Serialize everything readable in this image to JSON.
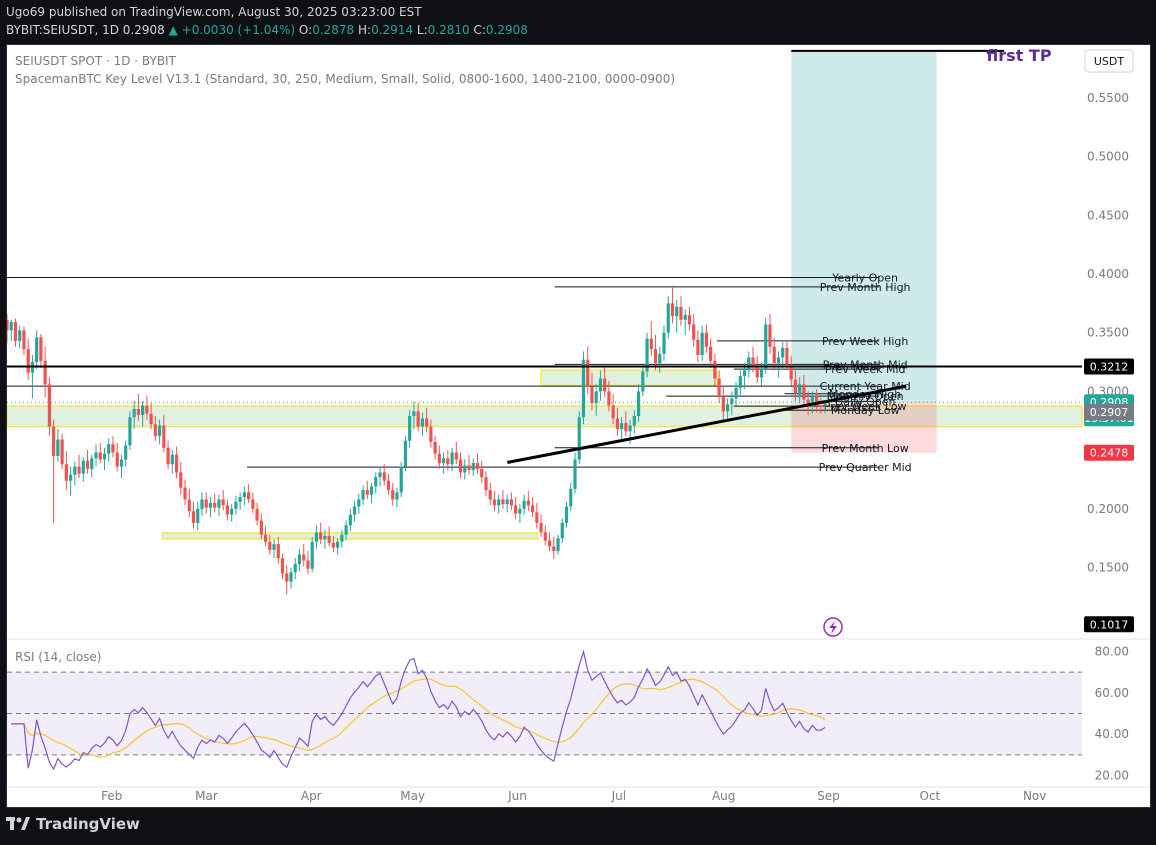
{
  "header": {
    "line1": "Ugo69 published on TradingView.com, August 30, 2025 03:23:00 EST",
    "symbol_line": "BYBIT:SEIUSDT, 1D",
    "price": "0.2908",
    "change": "+0.0030 (+1.04%)",
    "ohlc": [
      {
        "k": "O:",
        "v": "0.2878"
      },
      {
        "k": "H:",
        "v": "0.2914"
      },
      {
        "k": "L:",
        "v": "0.2810"
      },
      {
        "k": "C:",
        "v": "0.2908"
      }
    ]
  },
  "legend": {
    "title": "SEIUSDT SPOT · 1D · BYBIT",
    "indicator": "SpacemanBTC Key Level V13.1 (Standard, 30, 250, Medium, Small, Solid, 0800-1600, 1400-2100, 0000-0900)"
  },
  "footer": {
    "brand": "TradingView"
  },
  "chart_data": {
    "type": "candlestick",
    "currency": "USDT",
    "y_ticks": [
      "0.5500",
      "0.5000",
      "0.4500",
      "0.4000",
      "0.3500",
      "0.3000",
      "0.2500",
      "0.2000",
      "0.1500"
    ],
    "y_tick_values": [
      0.55,
      0.5,
      0.45,
      0.4,
      0.35,
      0.3,
      0.25,
      0.2,
      0.15
    ],
    "ylim": [
      0.09,
      0.595
    ],
    "x_ticks": [
      "Feb",
      "Mar",
      "Apr",
      "May",
      "Jun",
      "Jul",
      "Aug",
      "Sep",
      "Oct",
      "Nov"
    ],
    "x_tick_days": [
      31,
      59,
      90,
      120,
      151,
      181,
      212,
      243,
      273,
      304
    ],
    "xlim_days": [
      0,
      318
    ],
    "price_badges": [
      {
        "label": "0.3212",
        "value": 0.3212,
        "bg": "#000000",
        "fg": "#ffffff"
      },
      {
        "label": "0.2908",
        "value": 0.2908,
        "bg": "#26a69a",
        "fg": "#ffffff"
      },
      {
        "label": "15:37:01",
        "value": 0.2908,
        "bg": "#26a69a",
        "fg": "#ffffff",
        "sub": true
      },
      {
        "label": "0.2907",
        "value": 0.2825,
        "bg": "#787b86",
        "fg": "#ffffff"
      },
      {
        "label": "0.2478",
        "value": 0.2478,
        "bg": "#f23645",
        "fg": "#ffffff"
      },
      {
        "label": "0.1017",
        "value": 0.1017,
        "bg": "#000000",
        "fg": "#ffffff"
      }
    ],
    "key_levels": [
      {
        "label": "Yearly Open",
        "value": 0.397,
        "x1": 0,
        "x2": 258
      },
      {
        "label": "Prev Month High",
        "value": 0.389,
        "x1": 162,
        "x2": 258
      },
      {
        "label": "Prev Week High",
        "value": 0.343,
        "x1": 210,
        "x2": 258
      },
      {
        "label": "Prev Month Mid",
        "value": 0.323,
        "x1": 162,
        "x2": 258
      },
      {
        "label": "Prev Week Mid",
        "value": 0.319,
        "x1": 215,
        "x2": 258
      },
      {
        "label": "Current Year Mid",
        "value": 0.3045,
        "x1": 0,
        "x2": 258
      },
      {
        "label": "Monday High",
        "value": 0.298,
        "x1": 230,
        "x2": 258
      },
      {
        "label": "Monthly Open",
        "value": 0.296,
        "x1": 195,
        "x2": 258
      },
      {
        "label": "Daily Open",
        "value": 0.2915,
        "x1": 240,
        "x2": 258
      },
      {
        "label": "Prev Week Low",
        "value": 0.2875,
        "x1": 215,
        "x2": 258
      },
      {
        "label": "Monday Low",
        "value": 0.284,
        "x1": 230,
        "x2": 258
      },
      {
        "label": "Prev Month Low",
        "value": 0.252,
        "x1": 162,
        "x2": 258
      },
      {
        "label": "Prev Quarter Mid",
        "value": 0.2355,
        "x1": 71,
        "x2": 258
      }
    ],
    "position": {
      "label": "first TP",
      "entry": 0.2908,
      "target": 0.59,
      "stop": 0.2478,
      "start_day": 232,
      "end_day": 275
    },
    "trendline": {
      "x1": 148,
      "y1": 0.2395,
      "x2": 266,
      "y2": 0.3045
    },
    "black_level": {
      "value": 0.3212
    },
    "zones": [
      {
        "y1": 0.27,
        "y2": 0.2875,
        "x1": 0,
        "x2": 318
      },
      {
        "y1": 0.1745,
        "y2": 0.1795,
        "x1": 46,
        "x2": 157
      },
      {
        "y1": 0.305,
        "y2": 0.318,
        "x1": 158,
        "x2": 210
      }
    ],
    "rsi": {
      "title": "RSI (14, close)",
      "ticks": [
        "80.00",
        "60.00",
        "40.00",
        "20.00"
      ],
      "tick_values": [
        80,
        60,
        40,
        20
      ],
      "ylim": [
        15,
        85
      ],
      "upper": 70,
      "middle": 50,
      "lower": 30
    },
    "candles": [
      [
        0.361,
        0.366,
        0.341,
        0.352
      ],
      [
        0.352,
        0.361,
        0.343,
        0.359
      ],
      [
        0.359,
        0.362,
        0.338,
        0.343
      ],
      [
        0.343,
        0.356,
        0.337,
        0.352
      ],
      [
        0.352,
        0.355,
        0.331,
        0.336
      ],
      [
        0.336,
        0.345,
        0.31,
        0.316
      ],
      [
        0.316,
        0.331,
        0.294,
        0.325
      ],
      [
        0.325,
        0.352,
        0.319,
        0.346
      ],
      [
        0.346,
        0.349,
        0.32,
        0.326
      ],
      [
        0.326,
        0.338,
        0.295,
        0.306
      ],
      [
        0.306,
        0.312,
        0.262,
        0.27
      ],
      [
        0.27,
        0.276,
        0.188,
        0.245
      ],
      [
        0.245,
        0.268,
        0.24,
        0.259
      ],
      [
        0.259,
        0.264,
        0.234,
        0.238
      ],
      [
        0.238,
        0.249,
        0.216,
        0.224
      ],
      [
        0.224,
        0.236,
        0.211,
        0.229
      ],
      [
        0.229,
        0.24,
        0.22,
        0.236
      ],
      [
        0.236,
        0.246,
        0.226,
        0.23
      ],
      [
        0.23,
        0.244,
        0.223,
        0.241
      ],
      [
        0.241,
        0.25,
        0.23,
        0.234
      ],
      [
        0.234,
        0.246,
        0.227,
        0.243
      ],
      [
        0.243,
        0.255,
        0.236,
        0.248
      ],
      [
        0.248,
        0.256,
        0.239,
        0.242
      ],
      [
        0.242,
        0.252,
        0.233,
        0.247
      ],
      [
        0.247,
        0.26,
        0.24,
        0.255
      ],
      [
        0.255,
        0.262,
        0.244,
        0.248
      ],
      [
        0.248,
        0.256,
        0.232,
        0.236
      ],
      [
        0.236,
        0.246,
        0.226,
        0.242
      ],
      [
        0.242,
        0.258,
        0.236,
        0.254
      ],
      [
        0.254,
        0.283,
        0.25,
        0.278
      ],
      [
        0.278,
        0.292,
        0.268,
        0.285
      ],
      [
        0.285,
        0.298,
        0.275,
        0.28
      ],
      [
        0.28,
        0.292,
        0.27,
        0.288
      ],
      [
        0.288,
        0.296,
        0.276,
        0.281
      ],
      [
        0.281,
        0.29,
        0.268,
        0.272
      ],
      [
        0.272,
        0.279,
        0.258,
        0.262
      ],
      [
        0.262,
        0.276,
        0.255,
        0.271
      ],
      [
        0.271,
        0.28,
        0.248,
        0.252
      ],
      [
        0.252,
        0.258,
        0.234,
        0.238
      ],
      [
        0.238,
        0.25,
        0.23,
        0.246
      ],
      [
        0.246,
        0.253,
        0.226,
        0.231
      ],
      [
        0.231,
        0.24,
        0.212,
        0.218
      ],
      [
        0.218,
        0.225,
        0.203,
        0.208
      ],
      [
        0.208,
        0.217,
        0.193,
        0.198
      ],
      [
        0.198,
        0.206,
        0.183,
        0.188
      ],
      [
        0.188,
        0.206,
        0.182,
        0.2
      ],
      [
        0.2,
        0.214,
        0.194,
        0.208
      ],
      [
        0.208,
        0.214,
        0.196,
        0.201
      ],
      [
        0.201,
        0.21,
        0.193,
        0.205
      ],
      [
        0.205,
        0.213,
        0.197,
        0.201
      ],
      [
        0.201,
        0.212,
        0.194,
        0.208
      ],
      [
        0.208,
        0.216,
        0.199,
        0.203
      ],
      [
        0.203,
        0.208,
        0.19,
        0.195
      ],
      [
        0.195,
        0.204,
        0.189,
        0.2
      ],
      [
        0.2,
        0.211,
        0.195,
        0.206
      ],
      [
        0.206,
        0.214,
        0.199,
        0.21
      ],
      [
        0.21,
        0.219,
        0.203,
        0.214
      ],
      [
        0.214,
        0.221,
        0.205,
        0.208
      ],
      [
        0.208,
        0.214,
        0.196,
        0.2
      ],
      [
        0.2,
        0.205,
        0.186,
        0.19
      ],
      [
        0.19,
        0.196,
        0.174,
        0.178
      ],
      [
        0.178,
        0.185,
        0.168,
        0.172
      ],
      [
        0.172,
        0.178,
        0.161,
        0.165
      ],
      [
        0.165,
        0.174,
        0.158,
        0.17
      ],
      [
        0.17,
        0.176,
        0.153,
        0.158
      ],
      [
        0.158,
        0.162,
        0.14,
        0.145
      ],
      [
        0.145,
        0.152,
        0.127,
        0.138
      ],
      [
        0.138,
        0.15,
        0.132,
        0.146
      ],
      [
        0.146,
        0.158,
        0.14,
        0.153
      ],
      [
        0.153,
        0.166,
        0.147,
        0.161
      ],
      [
        0.161,
        0.17,
        0.151,
        0.156
      ],
      [
        0.156,
        0.164,
        0.144,
        0.149
      ],
      [
        0.149,
        0.176,
        0.146,
        0.172
      ],
      [
        0.172,
        0.186,
        0.166,
        0.18
      ],
      [
        0.18,
        0.188,
        0.17,
        0.174
      ],
      [
        0.174,
        0.182,
        0.166,
        0.177
      ],
      [
        0.177,
        0.185,
        0.168,
        0.171
      ],
      [
        0.171,
        0.177,
        0.163,
        0.167
      ],
      [
        0.167,
        0.175,
        0.161,
        0.172
      ],
      [
        0.172,
        0.182,
        0.167,
        0.178
      ],
      [
        0.178,
        0.19,
        0.173,
        0.186
      ],
      [
        0.186,
        0.2,
        0.181,
        0.195
      ],
      [
        0.195,
        0.207,
        0.189,
        0.202
      ],
      [
        0.202,
        0.213,
        0.196,
        0.208
      ],
      [
        0.208,
        0.22,
        0.203,
        0.216
      ],
      [
        0.216,
        0.224,
        0.208,
        0.212
      ],
      [
        0.212,
        0.222,
        0.205,
        0.219
      ],
      [
        0.219,
        0.231,
        0.213,
        0.227
      ],
      [
        0.227,
        0.236,
        0.219,
        0.231
      ],
      [
        0.231,
        0.238,
        0.22,
        0.224
      ],
      [
        0.224,
        0.23,
        0.212,
        0.216
      ],
      [
        0.216,
        0.222,
        0.203,
        0.208
      ],
      [
        0.208,
        0.218,
        0.201,
        0.214
      ],
      [
        0.214,
        0.24,
        0.21,
        0.236
      ],
      [
        0.236,
        0.262,
        0.232,
        0.258
      ],
      [
        0.258,
        0.284,
        0.252,
        0.279
      ],
      [
        0.279,
        0.291,
        0.268,
        0.283
      ],
      [
        0.283,
        0.29,
        0.266,
        0.27
      ],
      [
        0.27,
        0.282,
        0.262,
        0.277
      ],
      [
        0.277,
        0.286,
        0.265,
        0.27
      ],
      [
        0.27,
        0.276,
        0.252,
        0.257
      ],
      [
        0.257,
        0.262,
        0.242,
        0.247
      ],
      [
        0.247,
        0.254,
        0.234,
        0.239
      ],
      [
        0.239,
        0.248,
        0.23,
        0.243
      ],
      [
        0.243,
        0.25,
        0.233,
        0.238
      ],
      [
        0.238,
        0.252,
        0.232,
        0.248
      ],
      [
        0.248,
        0.257,
        0.238,
        0.242
      ],
      [
        0.242,
        0.248,
        0.226,
        0.231
      ],
      [
        0.231,
        0.242,
        0.225,
        0.237
      ],
      [
        0.237,
        0.246,
        0.229,
        0.233
      ],
      [
        0.233,
        0.243,
        0.228,
        0.239
      ],
      [
        0.239,
        0.247,
        0.23,
        0.234
      ],
      [
        0.234,
        0.241,
        0.222,
        0.227
      ],
      [
        0.227,
        0.232,
        0.211,
        0.216
      ],
      [
        0.216,
        0.222,
        0.203,
        0.208
      ],
      [
        0.208,
        0.215,
        0.198,
        0.203
      ],
      [
        0.203,
        0.212,
        0.196,
        0.208
      ],
      [
        0.208,
        0.216,
        0.2,
        0.204
      ],
      [
        0.204,
        0.212,
        0.197,
        0.208
      ],
      [
        0.208,
        0.214,
        0.199,
        0.203
      ],
      [
        0.203,
        0.21,
        0.191,
        0.196
      ],
      [
        0.196,
        0.204,
        0.188,
        0.2
      ],
      [
        0.2,
        0.212,
        0.195,
        0.207
      ],
      [
        0.207,
        0.215,
        0.198,
        0.203
      ],
      [
        0.203,
        0.21,
        0.193,
        0.197
      ],
      [
        0.197,
        0.205,
        0.183,
        0.188
      ],
      [
        0.188,
        0.195,
        0.176,
        0.18
      ],
      [
        0.18,
        0.186,
        0.169,
        0.173
      ],
      [
        0.173,
        0.18,
        0.164,
        0.168
      ],
      [
        0.168,
        0.176,
        0.157,
        0.164
      ],
      [
        0.164,
        0.178,
        0.161,
        0.175
      ],
      [
        0.175,
        0.192,
        0.171,
        0.188
      ],
      [
        0.188,
        0.206,
        0.184,
        0.202
      ],
      [
        0.202,
        0.222,
        0.198,
        0.217
      ],
      [
        0.217,
        0.248,
        0.213,
        0.242
      ],
      [
        0.242,
        0.283,
        0.238,
        0.278
      ],
      [
        0.278,
        0.334,
        0.272,
        0.327
      ],
      [
        0.327,
        0.338,
        0.298,
        0.304
      ],
      [
        0.304,
        0.316,
        0.284,
        0.29
      ],
      [
        0.29,
        0.306,
        0.279,
        0.3
      ],
      [
        0.3,
        0.318,
        0.292,
        0.311
      ],
      [
        0.311,
        0.322,
        0.295,
        0.3
      ],
      [
        0.3,
        0.309,
        0.283,
        0.288
      ],
      [
        0.288,
        0.298,
        0.272,
        0.277
      ],
      [
        0.277,
        0.286,
        0.262,
        0.268
      ],
      [
        0.268,
        0.278,
        0.259,
        0.273
      ],
      [
        0.273,
        0.283,
        0.262,
        0.266
      ],
      [
        0.266,
        0.276,
        0.255,
        0.271
      ],
      [
        0.271,
        0.284,
        0.264,
        0.279
      ],
      [
        0.279,
        0.306,
        0.274,
        0.3
      ],
      [
        0.3,
        0.322,
        0.296,
        0.317
      ],
      [
        0.317,
        0.35,
        0.312,
        0.345
      ],
      [
        0.345,
        0.36,
        0.33,
        0.336
      ],
      [
        0.336,
        0.348,
        0.318,
        0.324
      ],
      [
        0.324,
        0.338,
        0.316,
        0.332
      ],
      [
        0.332,
        0.356,
        0.326,
        0.35
      ],
      [
        0.35,
        0.381,
        0.345,
        0.375
      ],
      [
        0.375,
        0.39,
        0.358,
        0.364
      ],
      [
        0.364,
        0.378,
        0.35,
        0.372
      ],
      [
        0.372,
        0.381,
        0.356,
        0.361
      ],
      [
        0.361,
        0.37,
        0.348,
        0.365
      ],
      [
        0.365,
        0.372,
        0.352,
        0.357
      ],
      [
        0.357,
        0.366,
        0.338,
        0.344
      ],
      [
        0.344,
        0.352,
        0.325,
        0.331
      ],
      [
        0.331,
        0.356,
        0.326,
        0.35
      ],
      [
        0.35,
        0.357,
        0.333,
        0.338
      ],
      [
        0.338,
        0.345,
        0.32,
        0.326
      ],
      [
        0.326,
        0.332,
        0.305,
        0.311
      ],
      [
        0.311,
        0.318,
        0.29,
        0.296
      ],
      [
        0.296,
        0.305,
        0.276,
        0.283
      ],
      [
        0.283,
        0.294,
        0.275,
        0.289
      ],
      [
        0.289,
        0.3,
        0.28,
        0.294
      ],
      [
        0.294,
        0.308,
        0.288,
        0.303
      ],
      [
        0.303,
        0.318,
        0.296,
        0.313
      ],
      [
        0.313,
        0.324,
        0.302,
        0.318
      ],
      [
        0.318,
        0.334,
        0.312,
        0.329
      ],
      [
        0.329,
        0.338,
        0.316,
        0.321
      ],
      [
        0.321,
        0.33,
        0.307,
        0.312
      ],
      [
        0.312,
        0.324,
        0.305,
        0.319
      ],
      [
        0.319,
        0.363,
        0.315,
        0.357
      ],
      [
        0.357,
        0.366,
        0.332,
        0.338
      ],
      [
        0.338,
        0.346,
        0.318,
        0.324
      ],
      [
        0.324,
        0.334,
        0.312,
        0.329
      ],
      [
        0.329,
        0.342,
        0.32,
        0.337
      ],
      [
        0.337,
        0.344,
        0.318,
        0.323
      ],
      [
        0.323,
        0.33,
        0.305,
        0.31
      ],
      [
        0.31,
        0.318,
        0.292,
        0.298
      ],
      [
        0.298,
        0.312,
        0.29,
        0.306
      ],
      [
        0.306,
        0.314,
        0.288,
        0.293
      ],
      [
        0.293,
        0.3,
        0.28,
        0.287
      ],
      [
        0.287,
        0.3,
        0.281,
        0.296
      ],
      [
        0.296,
        0.302,
        0.282,
        0.288
      ],
      [
        0.288,
        0.295,
        0.281,
        0.2878
      ],
      [
        0.2878,
        0.2914,
        0.281,
        0.2908
      ]
    ]
  }
}
